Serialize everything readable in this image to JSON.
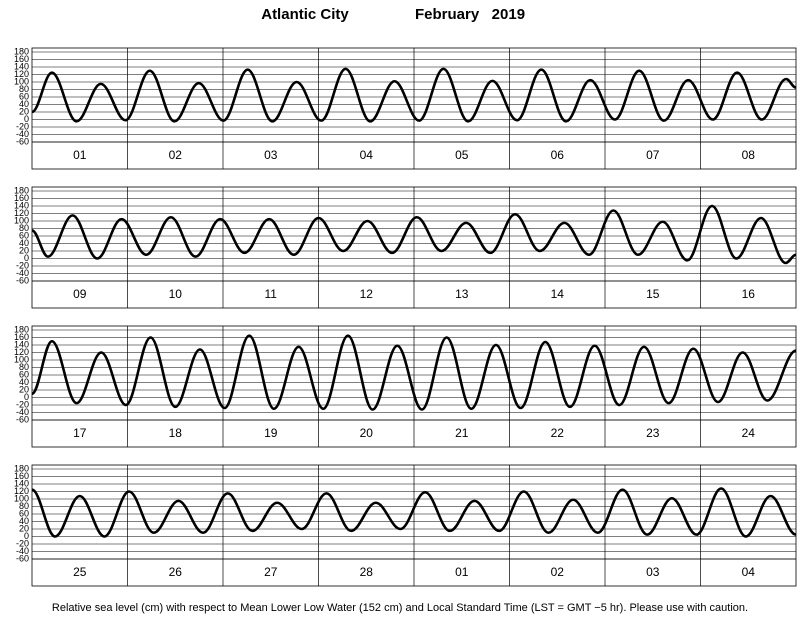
{
  "title": "Atlantic City",
  "subtitle": "February   2019",
  "footer": "Relative sea level (cm) with respect to Mean Lower Low Water (152 cm) and Local Standard Time (LST = GMT −5 hr). Please use with caution.",
  "chart_data": [
    {
      "type": "line",
      "categories": [
        "01",
        "02",
        "03",
        "04",
        "05",
        "06",
        "07",
        "08"
      ],
      "x": [
        0,
        5,
        11.2,
        17.3,
        23.5,
        29.6,
        35.8,
        41.9,
        48.1,
        54.2,
        60.4,
        66.5,
        72.7,
        78.8,
        85,
        91.1,
        97.3,
        103.4,
        109.6,
        115.7,
        121.9,
        128,
        134.2,
        140.3,
        146.5,
        152.6,
        158.8,
        164.9,
        171.1,
        177.2,
        183.4,
        189.5,
        192
      ],
      "series": [
        {
          "color": "#000000",
          "values": [
            20,
            125,
            -5,
            95,
            -2,
            130,
            -5,
            97,
            -3,
            133,
            -5,
            100,
            -3,
            135,
            -5,
            102,
            -3,
            135,
            -5,
            103,
            -2,
            133,
            -5,
            105,
            0,
            130,
            -3,
            105,
            0,
            125,
            0,
            108,
            85
          ]
        }
      ],
      "xlim": [
        0,
        192
      ],
      "ylim": [
        -60,
        180
      ],
      "yticks": [
        -60,
        -40,
        -20,
        0,
        20,
        40,
        60,
        80,
        100,
        120,
        140,
        160,
        180
      ],
      "grid": true
    },
    {
      "type": "line",
      "categories": [
        "09",
        "10",
        "11",
        "12",
        "13",
        "14",
        "15",
        "16"
      ],
      "x": [
        0,
        4,
        10.2,
        16.4,
        22.5,
        28.7,
        34.9,
        41.1,
        47.3,
        53.4,
        59.6,
        65.8,
        72,
        78.2,
        84.3,
        90.5,
        96.7,
        102.9,
        109.1,
        115.2,
        121.4,
        127.6,
        133.8,
        140,
        146.1,
        152.3,
        158.5,
        164.7,
        170.9,
        177,
        183.2,
        189.4,
        192
      ],
      "series": [
        {
          "color": "#000000",
          "values": [
            75,
            5,
            115,
            0,
            105,
            10,
            110,
            5,
            105,
            15,
            105,
            10,
            108,
            20,
            100,
            15,
            110,
            20,
            95,
            15,
            118,
            20,
            95,
            10,
            128,
            10,
            98,
            -5,
            140,
            0,
            108,
            -12,
            10
          ]
        }
      ],
      "xlim": [
        0,
        192
      ],
      "ylim": [
        -60,
        180
      ],
      "yticks": [
        -60,
        -40,
        -20,
        0,
        20,
        40,
        60,
        80,
        100,
        120,
        140,
        160,
        180
      ],
      "grid": true
    },
    {
      "type": "line",
      "categories": [
        "17",
        "18",
        "19",
        "20",
        "21",
        "22",
        "23",
        "24"
      ],
      "x": [
        0,
        5,
        11.2,
        17.4,
        23.6,
        29.8,
        36,
        42.2,
        48.4,
        54.6,
        60.8,
        67,
        73.2,
        79.4,
        85.6,
        91.8,
        98,
        104.2,
        110.4,
        116.6,
        122.8,
        129,
        135.2,
        141.4,
        147.6,
        153.8,
        160,
        166.2,
        172.4,
        178.6,
        184.8,
        192
      ],
      "series": [
        {
          "color": "#000000",
          "values": [
            10,
            150,
            -15,
            120,
            -20,
            160,
            -25,
            128,
            -28,
            165,
            -30,
            135,
            -30,
            165,
            -32,
            138,
            -32,
            160,
            -30,
            140,
            -28,
            148,
            -25,
            138,
            -20,
            135,
            -15,
            130,
            -12,
            120,
            -8,
            125
          ]
        }
      ],
      "xlim": [
        0,
        192
      ],
      "ylim": [
        -60,
        180
      ],
      "yticks": [
        -60,
        -40,
        -20,
        0,
        20,
        40,
        60,
        80,
        100,
        120,
        140,
        160,
        180
      ],
      "grid": true
    },
    {
      "type": "line",
      "categories": [
        "25",
        "26",
        "27",
        "28",
        "01",
        "02",
        "03",
        "04"
      ],
      "x": [
        0,
        5.8,
        12,
        18.2,
        24.4,
        30.6,
        36.8,
        43,
        49.2,
        55.4,
        61.6,
        67.8,
        74,
        80.2,
        86.4,
        92.6,
        98.8,
        105,
        111.2,
        117.4,
        123.6,
        129.8,
        136,
        142.2,
        148.4,
        154.6,
        160.8,
        167,
        173.2,
        179.4,
        185.6,
        192
      ],
      "series": [
        {
          "color": "#000000",
          "values": [
            125,
            0,
            108,
            0,
            120,
            10,
            95,
            10,
            115,
            15,
            90,
            20,
            115,
            15,
            90,
            20,
            118,
            15,
            95,
            15,
            120,
            10,
            98,
            10,
            125,
            5,
            102,
            5,
            128,
            0,
            108,
            5
          ]
        }
      ],
      "xlim": [
        0,
        192
      ],
      "ylim": [
        -60,
        180
      ],
      "yticks": [
        -60,
        -40,
        -20,
        0,
        20,
        40,
        60,
        80,
        100,
        120,
        140,
        160,
        180
      ],
      "grid": true
    }
  ]
}
